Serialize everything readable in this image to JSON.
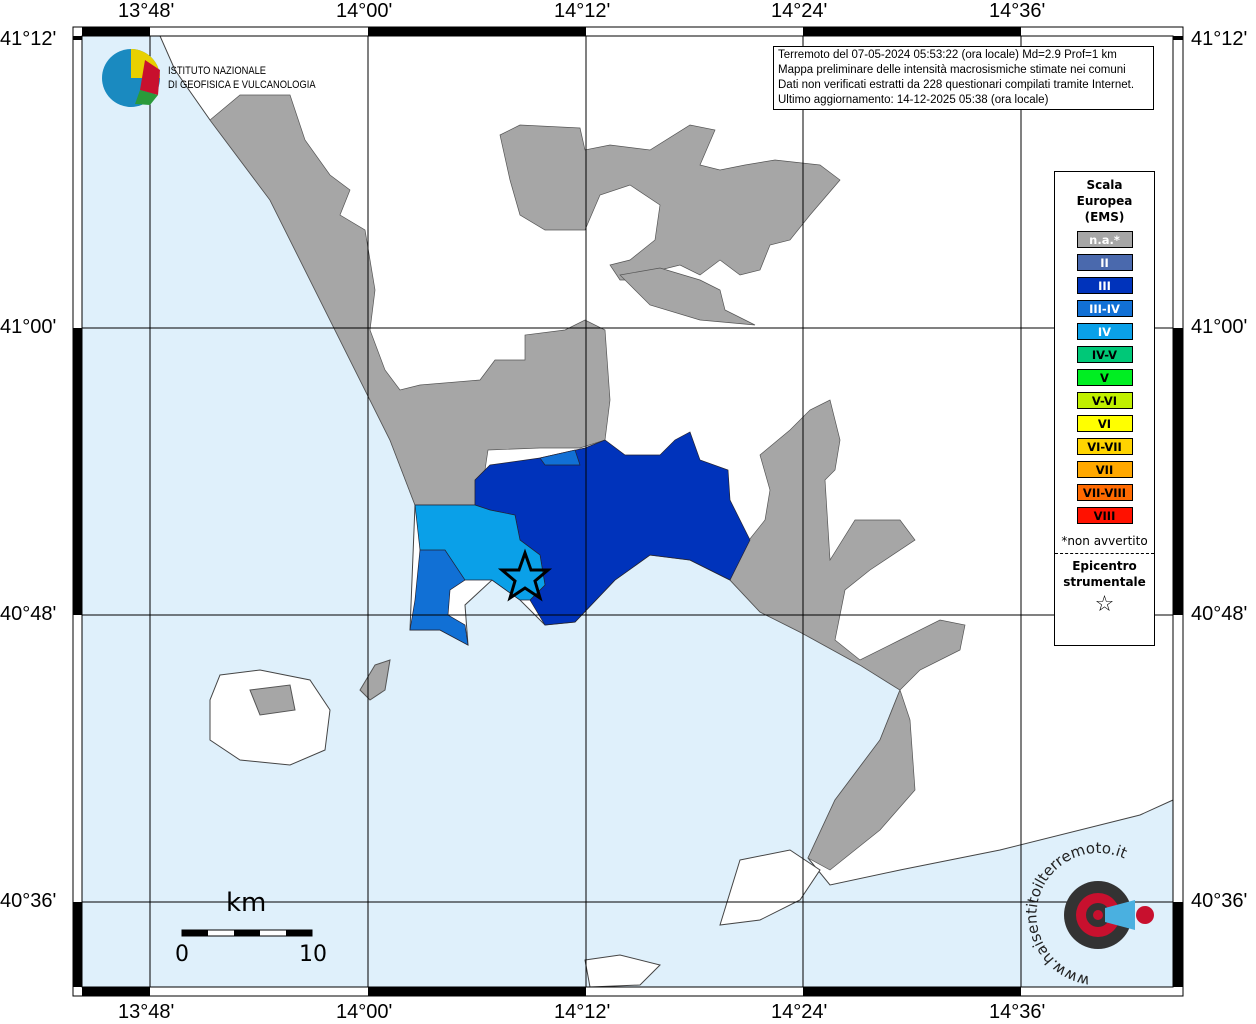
{
  "map": {
    "lon_ticks": [
      "13°48'",
      "14°00'",
      "14°12'",
      "14°24'",
      "14°36'"
    ],
    "lat_ticks": [
      "41°12'",
      "41°00'",
      "40°48'",
      "40°36'"
    ],
    "colors": {
      "sea": "#dff0fb",
      "land": "#ffffff",
      "na": "#a6a6a6",
      "III": "#0033bb",
      "III-IV": "#1170d5",
      "IV": "#0aa0e8"
    }
  },
  "info": {
    "lines": [
      "Terremoto del 07-05-2024 05:53:22 (ora locale) Md=2.9 Prof=1 km",
      "Mappa preliminare delle intensità macrosismiche stimate nei comuni",
      "Dati non verificati estratti da 228 questionari compilati tramite Internet.",
      "Ultimo aggiornamento: 14-12-2025 05:38 (ora locale)"
    ]
  },
  "legend": {
    "title_lines": [
      "Scala",
      "Europea",
      "(EMS)"
    ],
    "items": [
      {
        "label": "n.a.*",
        "color": "#a6a6a6",
        "text": "#ffffff"
      },
      {
        "label": "II",
        "color": "#4a69ad",
        "text": "#ffffff"
      },
      {
        "label": "III",
        "color": "#0033bb",
        "text": "#ffffff"
      },
      {
        "label": "III-IV",
        "color": "#1170d5",
        "text": "#ffffff"
      },
      {
        "label": "IV",
        "color": "#0aa0e8",
        "text": "#ffffff"
      },
      {
        "label": "IV-V",
        "color": "#00c878",
        "text": "#000000"
      },
      {
        "label": "V",
        "color": "#00ee22",
        "text": "#000000"
      },
      {
        "label": "V-VI",
        "color": "#c0f000",
        "text": "#000000"
      },
      {
        "label": "VI",
        "color": "#ffff00",
        "text": "#000000"
      },
      {
        "label": "VI-VII",
        "color": "#ffd400",
        "text": "#000000"
      },
      {
        "label": "VII",
        "color": "#ffa800",
        "text": "#000000"
      },
      {
        "label": "VII-VIII",
        "color": "#ff6a00",
        "text": "#000000"
      },
      {
        "label": "VIII",
        "color": "#ff1100",
        "text": "#000000"
      }
    ],
    "note": "*non avvertito",
    "epicenter_lines": [
      "Epicentro",
      "strumentale"
    ],
    "epicenter_symbol": "☆"
  },
  "logo_ingv": {
    "lines": [
      "ISTITUTO NAZIONALE",
      "DI GEOFISICA E VULCANOLOGIA"
    ]
  },
  "logo_haisentito": {
    "text": "www.haisentitoilterremoto.it"
  },
  "scale": {
    "unit": "km",
    "min": "0",
    "max": "10"
  }
}
